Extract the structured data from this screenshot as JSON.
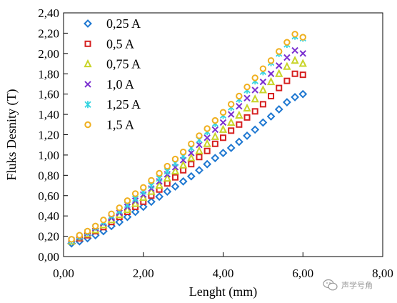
{
  "chart_data": {
    "type": "scatter",
    "title": "",
    "xlabel": "Lenght (mm)",
    "ylabel": "Fluks Desnity (T)",
    "xlim": [
      0,
      8
    ],
    "ylim": [
      0,
      2.4
    ],
    "x_ticks": [
      "0,00",
      "2,00",
      "4,00",
      "6,00",
      "8,00"
    ],
    "y_ticks": [
      "0,00",
      "0,20",
      "0,40",
      "0,60",
      "0,80",
      "1,00",
      "1,20",
      "1,40",
      "1,60",
      "1,80",
      "2,00",
      "2,20",
      "2,40"
    ],
    "grid": false,
    "legend_position": "top-left",
    "x": [
      0.2,
      0.4,
      0.6,
      0.8,
      1.0,
      1.2,
      1.4,
      1.6,
      1.8,
      2.0,
      2.2,
      2.4,
      2.6,
      2.8,
      3.0,
      3.2,
      3.4,
      3.6,
      3.8,
      4.0,
      4.2,
      4.4,
      4.6,
      4.8,
      5.0,
      5.2,
      5.4,
      5.6,
      5.8,
      6.0
    ],
    "series": [
      {
        "name": "0,25 A",
        "marker": "diamond",
        "color": "#1f78d1",
        "values": [
          0.13,
          0.15,
          0.18,
          0.21,
          0.25,
          0.3,
          0.34,
          0.39,
          0.44,
          0.49,
          0.54,
          0.59,
          0.64,
          0.69,
          0.74,
          0.79,
          0.85,
          0.91,
          0.97,
          1.02,
          1.07,
          1.13,
          1.19,
          1.25,
          1.32,
          1.38,
          1.45,
          1.52,
          1.57,
          1.6
        ]
      },
      {
        "name": "0,5 A",
        "marker": "square",
        "color": "#d62020",
        "values": [
          0.15,
          0.18,
          0.21,
          0.25,
          0.29,
          0.34,
          0.39,
          0.44,
          0.49,
          0.54,
          0.6,
          0.66,
          0.72,
          0.78,
          0.85,
          0.91,
          0.98,
          1.04,
          1.11,
          1.17,
          1.24,
          1.3,
          1.37,
          1.43,
          1.5,
          1.58,
          1.66,
          1.73,
          1.8,
          1.79
        ]
      },
      {
        "name": "0,75 A",
        "marker": "triangle",
        "color": "#c8d428",
        "values": [
          0.15,
          0.19,
          0.22,
          0.26,
          0.31,
          0.36,
          0.41,
          0.46,
          0.52,
          0.58,
          0.64,
          0.7,
          0.77,
          0.84,
          0.9,
          0.97,
          1.04,
          1.11,
          1.18,
          1.25,
          1.32,
          1.39,
          1.46,
          1.55,
          1.64,
          1.72,
          1.8,
          1.87,
          1.93,
          1.9
        ]
      },
      {
        "name": "1,0 A",
        "marker": "x",
        "color": "#7b2fd0",
        "values": [
          0.16,
          0.19,
          0.23,
          0.28,
          0.33,
          0.38,
          0.43,
          0.49,
          0.55,
          0.61,
          0.67,
          0.74,
          0.81,
          0.88,
          0.95,
          1.02,
          1.1,
          1.17,
          1.25,
          1.32,
          1.4,
          1.48,
          1.56,
          1.64,
          1.72,
          1.8,
          1.88,
          1.96,
          2.03,
          2.0
        ]
      },
      {
        "name": "1,25 A",
        "marker": "asterisk",
        "color": "#33d4e0",
        "values": [
          0.16,
          0.2,
          0.24,
          0.29,
          0.34,
          0.4,
          0.45,
          0.51,
          0.57,
          0.64,
          0.7,
          0.77,
          0.84,
          0.92,
          0.99,
          1.07,
          1.15,
          1.23,
          1.31,
          1.39,
          1.47,
          1.55,
          1.64,
          1.73,
          1.82,
          1.91,
          2.0,
          2.09,
          2.17,
          2.15
        ]
      },
      {
        "name": "1,5 A",
        "marker": "circle",
        "color": "#f0b020",
        "values": [
          0.17,
          0.21,
          0.25,
          0.3,
          0.36,
          0.42,
          0.48,
          0.55,
          0.62,
          0.68,
          0.75,
          0.82,
          0.89,
          0.96,
          1.03,
          1.11,
          1.19,
          1.26,
          1.34,
          1.42,
          1.5,
          1.58,
          1.67,
          1.76,
          1.85,
          1.93,
          2.02,
          2.11,
          2.19,
          2.16
        ]
      }
    ]
  },
  "watermark": {
    "text": "声学号角",
    "icon": "wechat-icon"
  }
}
